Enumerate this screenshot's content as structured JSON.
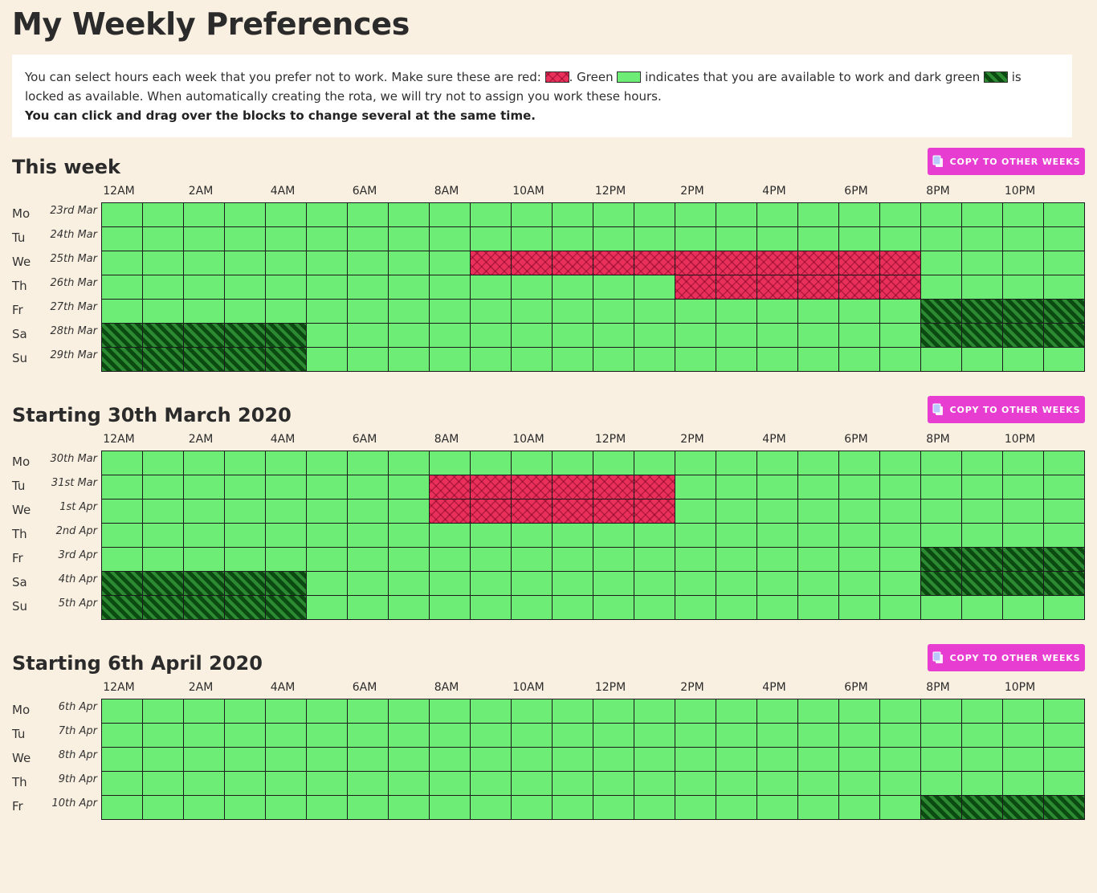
{
  "page_title": "My Weekly Preferences",
  "info": {
    "part1": "You can select hours each week that you prefer not to work. Make sure these are red: ",
    "part2": ". Green ",
    "part3": " indicates that you are available to work and dark green ",
    "part4": " is locked as available. When automatically creating the rota, we will try not to assign you work these hours.",
    "bold_line": "You can click and drag over the blocks to change several at the same time."
  },
  "colors": {
    "background": "#faf0e1",
    "available": "#6ded76",
    "unavailable": "#e8305b",
    "locked": "#0b4a10",
    "button": "#e83dd1"
  },
  "copy_button_label": "COPY TO OTHER WEEKS",
  "hour_labels": [
    "12AM",
    "2AM",
    "4AM",
    "6AM",
    "8AM",
    "10AM",
    "12PM",
    "2PM",
    "4PM",
    "6PM",
    "8PM",
    "10PM"
  ],
  "weeks": [
    {
      "title": "This week",
      "days": [
        {
          "abbr": "Mo",
          "date": "23rd Mar",
          "red": [],
          "locked": []
        },
        {
          "abbr": "Tu",
          "date": "24th Mar",
          "red": [],
          "locked": []
        },
        {
          "abbr": "We",
          "date": "25th Mar",
          "red": [
            9,
            10,
            11,
            12,
            13,
            14,
            15,
            16,
            17,
            18,
            19
          ],
          "locked": []
        },
        {
          "abbr": "Th",
          "date": "26th Mar",
          "red": [
            14,
            15,
            16,
            17,
            18,
            19
          ],
          "locked": []
        },
        {
          "abbr": "Fr",
          "date": "27th Mar",
          "red": [],
          "locked": [
            20,
            21,
            22,
            23
          ]
        },
        {
          "abbr": "Sa",
          "date": "28th Mar",
          "red": [],
          "locked": [
            0,
            1,
            2,
            3,
            4,
            20,
            21,
            22,
            23
          ]
        },
        {
          "abbr": "Su",
          "date": "29th Mar",
          "red": [],
          "locked": [
            0,
            1,
            2,
            3,
            4
          ]
        }
      ]
    },
    {
      "title": "Starting 30th March 2020",
      "days": [
        {
          "abbr": "Mo",
          "date": "30th Mar",
          "red": [],
          "locked": []
        },
        {
          "abbr": "Tu",
          "date": "31st Mar",
          "red": [
            8,
            9,
            10,
            11,
            12,
            13
          ],
          "locked": []
        },
        {
          "abbr": "We",
          "date": "1st Apr",
          "red": [
            8,
            9,
            10,
            11,
            12,
            13
          ],
          "locked": []
        },
        {
          "abbr": "Th",
          "date": "2nd Apr",
          "red": [],
          "locked": []
        },
        {
          "abbr": "Fr",
          "date": "3rd Apr",
          "red": [],
          "locked": [
            20,
            21,
            22,
            23
          ]
        },
        {
          "abbr": "Sa",
          "date": "4th Apr",
          "red": [],
          "locked": [
            0,
            1,
            2,
            3,
            4,
            20,
            21,
            22,
            23
          ]
        },
        {
          "abbr": "Su",
          "date": "5th Apr",
          "red": [],
          "locked": [
            0,
            1,
            2,
            3,
            4
          ]
        }
      ]
    },
    {
      "title": "Starting 6th April 2020",
      "days": [
        {
          "abbr": "Mo",
          "date": "6th Apr",
          "red": [],
          "locked": []
        },
        {
          "abbr": "Tu",
          "date": "7th Apr",
          "red": [],
          "locked": []
        },
        {
          "abbr": "We",
          "date": "8th Apr",
          "red": [],
          "locked": []
        },
        {
          "abbr": "Th",
          "date": "9th Apr",
          "red": [],
          "locked": []
        },
        {
          "abbr": "Fr",
          "date": "10th Apr",
          "red": [],
          "locked": [
            20,
            21,
            22,
            23
          ]
        }
      ]
    }
  ]
}
